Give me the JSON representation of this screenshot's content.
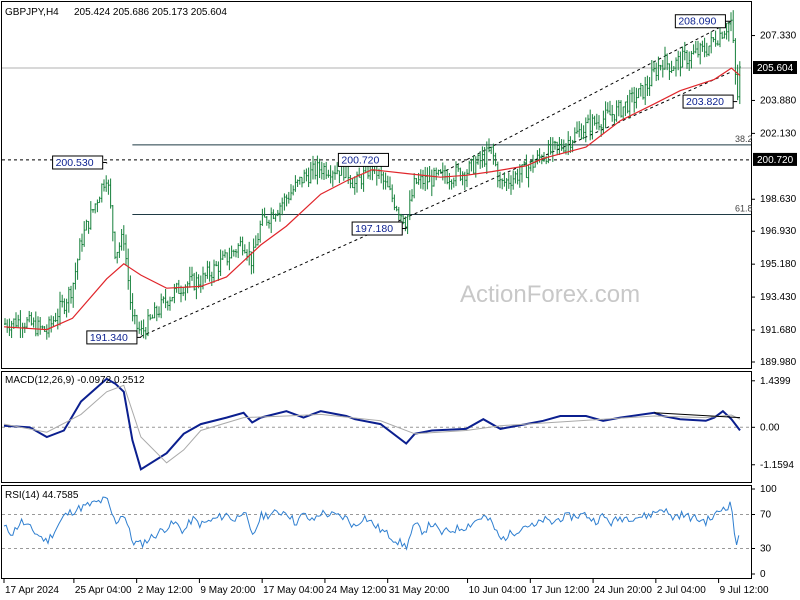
{
  "header": {
    "symbol": "GBPJPY,H4",
    "ohlc": "205.424 205.686 205.173 205.604"
  },
  "watermark": "ActionForex.com",
  "colors": {
    "candle": "#15803a",
    "ma": "#e0262b",
    "macd": "#0b1f8f",
    "macd_signal": "#aaaaaa",
    "rsi": "#2f7fd0",
    "grid": "#000000",
    "annotation_text": "#0b1f8f",
    "price_tag_bg": "#000000",
    "price_tag_text": "#ffffff"
  },
  "chart_data": [
    {
      "type": "line",
      "name": "GBPJPY H4 price",
      "ylim": [
        189.98,
        208.9
      ],
      "yticks": [
        "207.330",
        "205.604",
        "203.880",
        "202.130",
        "200.720",
        "198.630",
        "196.930",
        "195.180",
        "193.430",
        "191.680",
        "189.980"
      ],
      "current_price": "205.604",
      "x_start_date": "2024-04-17",
      "x_end_date": "2024-07-12",
      "xticks": [
        "17 Apr 2024",
        "25 Apr 04:00",
        "2 May 12:00",
        "9 May 20:00",
        "17 May 04:00",
        "24 May 12:00",
        "31 May 20:00",
        "10 Jun 04:00",
        "17 Jun 12:00",
        "24 Jun 20:00",
        "2 Jul 04:00",
        "9 Jul 12:00"
      ],
      "close_path": [
        [
          "2024-04-17",
          192.0
        ],
        [
          "2024-04-19",
          192.2
        ],
        [
          "2024-04-22",
          191.6
        ],
        [
          "2024-04-23",
          192.4
        ],
        [
          "2024-04-24",
          193.1
        ],
        [
          "2024-04-25",
          194.0
        ],
        [
          "2024-04-26",
          196.4
        ],
        [
          "2024-04-29",
          200.0
        ],
        [
          "2024-04-30",
          195.8
        ],
        [
          "2024-05-01",
          196.6
        ],
        [
          "2024-05-02",
          192.2
        ],
        [
          "2024-05-03",
          191.5
        ],
        [
          "2024-05-06",
          193.3
        ],
        [
          "2024-05-08",
          194.1
        ],
        [
          "2024-05-10",
          194.3
        ],
        [
          "2024-05-13",
          195.5
        ],
        [
          "2024-05-15",
          196.4
        ],
        [
          "2024-05-16",
          195.3
        ],
        [
          "2024-05-17",
          197.3
        ],
        [
          "2024-05-20",
          198.7
        ],
        [
          "2024-05-22",
          199.8
        ],
        [
          "2024-05-24",
          200.3
        ],
        [
          "2024-05-27",
          200.2
        ],
        [
          "2024-05-28",
          199.4
        ],
        [
          "2024-05-30",
          200.4
        ],
        [
          "2024-05-31",
          199.8
        ],
        [
          "2024-06-03",
          197.4
        ],
        [
          "2024-06-04",
          199.5
        ],
        [
          "2024-06-06",
          199.7
        ],
        [
          "2024-06-10",
          200.1
        ],
        [
          "2024-06-12",
          200.8
        ],
        [
          "2024-06-13",
          201.2
        ],
        [
          "2024-06-14",
          199.4
        ],
        [
          "2024-06-17",
          200.2
        ],
        [
          "2024-06-19",
          201.0
        ],
        [
          "2024-06-21",
          201.4
        ],
        [
          "2024-06-24",
          202.5
        ],
        [
          "2024-06-26",
          202.9
        ],
        [
          "2024-06-28",
          203.4
        ],
        [
          "2024-07-01",
          204.5
        ],
        [
          "2024-07-02",
          205.4
        ],
        [
          "2024-07-03",
          206.0
        ],
        [
          "2024-07-04",
          205.7
        ],
        [
          "2024-07-05",
          206.0
        ],
        [
          "2024-07-08",
          206.6
        ],
        [
          "2024-07-10",
          207.6
        ],
        [
          "2024-07-11",
          208.09
        ],
        [
          "2024-07-11T16:00",
          203.82
        ],
        [
          "2024-07-12",
          205.604
        ]
      ],
      "moving_average_path": [
        [
          "2024-04-17",
          191.85
        ],
        [
          "2024-04-22",
          191.7
        ],
        [
          "2024-04-25",
          192.3
        ],
        [
          "2024-04-29",
          194.4
        ],
        [
          "2024-05-01",
          195.2
        ],
        [
          "2024-05-03",
          194.6
        ],
        [
          "2024-05-06",
          193.9
        ],
        [
          "2024-05-10",
          194.0
        ],
        [
          "2024-05-13",
          194.5
        ],
        [
          "2024-05-17",
          196.2
        ],
        [
          "2024-05-20",
          197.2
        ],
        [
          "2024-05-24",
          198.9
        ],
        [
          "2024-05-27",
          199.6
        ],
        [
          "2024-05-30",
          200.2
        ],
        [
          "2024-06-03",
          200.0
        ],
        [
          "2024-06-07",
          199.8
        ],
        [
          "2024-06-10",
          199.9
        ],
        [
          "2024-06-13",
          200.1
        ],
        [
          "2024-06-17",
          200.4
        ],
        [
          "2024-06-19",
          200.8
        ],
        [
          "2024-06-24",
          201.4
        ],
        [
          "2024-06-26",
          202.1
        ],
        [
          "2024-06-28",
          202.8
        ],
        [
          "2024-07-02",
          203.7
        ],
        [
          "2024-07-05",
          204.4
        ],
        [
          "2024-07-09",
          205.0
        ],
        [
          "2024-07-11",
          205.6
        ],
        [
          "2024-07-12",
          205.2
        ]
      ],
      "labeled_points": [
        {
          "date": "2024-04-29",
          "value": 200.53,
          "label": "200.530"
        },
        {
          "date": "2024-05-03",
          "value": 191.34,
          "label": "191.340"
        },
        {
          "date": "2024-05-29",
          "value": 200.72,
          "label": "200.720"
        },
        {
          "date": "2024-06-03",
          "value": 197.18,
          "label": "197.180"
        },
        {
          "date": "2024-07-11",
          "value": 208.09,
          "label": "208.090"
        },
        {
          "date": "2024-07-11T16:00",
          "value": 203.82,
          "label": "203.820"
        }
      ],
      "horizontal_lines": [
        {
          "value": 200.72,
          "style": "dotted",
          "label": "200.720",
          "tagged": true
        },
        {
          "value": 205.604,
          "style": "solid-gray"
        },
        {
          "value": 201.52,
          "style": "solid",
          "start": "2024-05-02",
          "label": "38.2"
        },
        {
          "value": 197.82,
          "style": "solid",
          "start": "2024-05-02",
          "label": "61.8"
        }
      ],
      "trend_channel": {
        "lower": [
          [
            "2024-05-03",
            191.34
          ],
          [
            "2024-07-11",
            205.4
          ]
        ],
        "upper": [
          [
            "2024-06-07",
            200.0
          ],
          [
            "2024-07-11",
            208.09
          ]
        ]
      }
    },
    {
      "type": "line",
      "title": "MACD(12,26,9) -0.0972 0.2512",
      "ylim": [
        -1.6,
        1.65
      ],
      "yticks": [
        "1.4399",
        "0.00",
        "-1.1594"
      ],
      "series": [
        {
          "role": "macd",
          "points": [
            [
              "2024-04-17",
              0.05
            ],
            [
              "2024-04-20",
              0.0
            ],
            [
              "2024-04-22",
              -0.3
            ],
            [
              "2024-04-24",
              -0.1
            ],
            [
              "2024-04-26",
              0.8
            ],
            [
              "2024-04-29",
              1.5
            ],
            [
              "2024-04-30",
              1.35
            ],
            [
              "2024-05-01",
              1.1
            ],
            [
              "2024-05-02",
              -0.4
            ],
            [
              "2024-05-03",
              -1.3
            ],
            [
              "2024-05-06",
              -0.8
            ],
            [
              "2024-05-08",
              -0.2
            ],
            [
              "2024-05-10",
              0.1
            ],
            [
              "2024-05-13",
              0.3
            ],
            [
              "2024-05-15",
              0.45
            ],
            [
              "2024-05-16",
              0.15
            ],
            [
              "2024-05-17",
              0.3
            ],
            [
              "2024-05-20",
              0.5
            ],
            [
              "2024-05-22",
              0.3
            ],
            [
              "2024-05-24",
              0.5
            ],
            [
              "2024-05-27",
              0.35
            ],
            [
              "2024-05-28",
              0.25
            ],
            [
              "2024-05-31",
              0.1
            ],
            [
              "2024-06-03",
              -0.5
            ],
            [
              "2024-06-04",
              -0.2
            ],
            [
              "2024-06-06",
              -0.1
            ],
            [
              "2024-06-10",
              -0.05
            ],
            [
              "2024-06-12",
              0.25
            ],
            [
              "2024-06-14",
              -0.05
            ],
            [
              "2024-06-17",
              0.1
            ],
            [
              "2024-06-19",
              0.2
            ],
            [
              "2024-06-21",
              0.35
            ],
            [
              "2024-06-24",
              0.35
            ],
            [
              "2024-06-26",
              0.2
            ],
            [
              "2024-06-28",
              0.3
            ],
            [
              "2024-07-02",
              0.45
            ],
            [
              "2024-07-03",
              0.35
            ],
            [
              "2024-07-05",
              0.25
            ],
            [
              "2024-07-08",
              0.2
            ],
            [
              "2024-07-09",
              0.3
            ],
            [
              "2024-07-10",
              0.5
            ],
            [
              "2024-07-11",
              0.25
            ],
            [
              "2024-07-12",
              -0.0972
            ]
          ]
        },
        {
          "role": "signal",
          "points": [
            [
              "2024-04-17",
              0.1
            ],
            [
              "2024-04-22",
              -0.15
            ],
            [
              "2024-04-26",
              0.4
            ],
            [
              "2024-04-29",
              1.1
            ],
            [
              "2024-05-01",
              1.3
            ],
            [
              "2024-05-03",
              -0.3
            ],
            [
              "2024-05-06",
              -1.1
            ],
            [
              "2024-05-08",
              -0.7
            ],
            [
              "2024-05-10",
              -0.1
            ],
            [
              "2024-05-15",
              0.3
            ],
            [
              "2024-05-20",
              0.35
            ],
            [
              "2024-05-24",
              0.4
            ],
            [
              "2024-05-31",
              0.2
            ],
            [
              "2024-06-04",
              -0.2
            ],
            [
              "2024-06-10",
              -0.1
            ],
            [
              "2024-06-14",
              0.05
            ],
            [
              "2024-06-20",
              0.15
            ],
            [
              "2024-06-26",
              0.25
            ],
            [
              "2024-07-02",
              0.35
            ],
            [
              "2024-07-08",
              0.3
            ],
            [
              "2024-07-11",
              0.38
            ],
            [
              "2024-07-12",
              0.2512
            ]
          ]
        }
      ],
      "divergence_line": [
        [
          "2024-07-02",
          0.45
        ],
        [
          "2024-07-12",
          0.3
        ]
      ]
    },
    {
      "type": "line",
      "title": "RSI(14) 44.7585",
      "ylim": [
        0,
        100
      ],
      "yticks": [
        "100",
        "70",
        "30",
        "0"
      ],
      "levels": [
        70,
        30
      ],
      "points": [
        [
          "2024-04-17",
          55
        ],
        [
          "2024-04-18",
          48
        ],
        [
          "2024-04-19",
          62
        ],
        [
          "2024-04-22",
          38
        ],
        [
          "2024-04-23",
          52
        ],
        [
          "2024-04-24",
          68
        ],
        [
          "2024-04-25",
          74
        ],
        [
          "2024-04-26",
          78
        ],
        [
          "2024-04-29",
          88
        ],
        [
          "2024-04-30",
          60
        ],
        [
          "2024-05-01",
          72
        ],
        [
          "2024-05-02",
          38
        ],
        [
          "2024-05-03",
          35
        ],
        [
          "2024-05-06",
          55
        ],
        [
          "2024-05-07",
          60
        ],
        [
          "2024-05-08",
          50
        ],
        [
          "2024-05-09",
          65
        ],
        [
          "2024-05-10",
          58
        ],
        [
          "2024-05-13",
          70
        ],
        [
          "2024-05-14",
          63
        ],
        [
          "2024-05-15",
          77
        ],
        [
          "2024-05-16",
          42
        ],
        [
          "2024-05-17",
          68
        ],
        [
          "2024-05-20",
          74
        ],
        [
          "2024-05-21",
          60
        ],
        [
          "2024-05-22",
          70
        ],
        [
          "2024-05-23",
          62
        ],
        [
          "2024-05-24",
          72
        ],
        [
          "2024-05-27",
          66
        ],
        [
          "2024-05-28",
          55
        ],
        [
          "2024-05-29",
          68
        ],
        [
          "2024-05-30",
          60
        ],
        [
          "2024-05-31",
          52
        ],
        [
          "2024-06-03",
          32
        ],
        [
          "2024-06-04",
          58
        ],
        [
          "2024-06-05",
          50
        ],
        [
          "2024-06-06",
          60
        ],
        [
          "2024-06-07",
          48
        ],
        [
          "2024-06-10",
          56
        ],
        [
          "2024-06-11",
          62
        ],
        [
          "2024-06-12",
          68
        ],
        [
          "2024-06-13",
          60
        ],
        [
          "2024-06-14",
          40
        ],
        [
          "2024-06-17",
          58
        ],
        [
          "2024-06-18",
          55
        ],
        [
          "2024-06-19",
          64
        ],
        [
          "2024-06-20",
          60
        ],
        [
          "2024-06-21",
          66
        ],
        [
          "2024-06-24",
          70
        ],
        [
          "2024-06-25",
          62
        ],
        [
          "2024-06-26",
          68
        ],
        [
          "2024-06-27",
          60
        ],
        [
          "2024-06-28",
          66
        ],
        [
          "2024-07-01",
          68
        ],
        [
          "2024-07-02",
          72
        ],
        [
          "2024-07-03",
          78
        ],
        [
          "2024-07-04",
          66
        ],
        [
          "2024-07-05",
          70
        ],
        [
          "2024-07-08",
          62
        ],
        [
          "2024-07-09",
          68
        ],
        [
          "2024-07-10",
          78
        ],
        [
          "2024-07-11",
          82
        ],
        [
          "2024-07-11T12:00",
          35
        ],
        [
          "2024-07-11T20:00",
          40
        ],
        [
          "2024-07-12",
          44.7585
        ]
      ]
    }
  ]
}
